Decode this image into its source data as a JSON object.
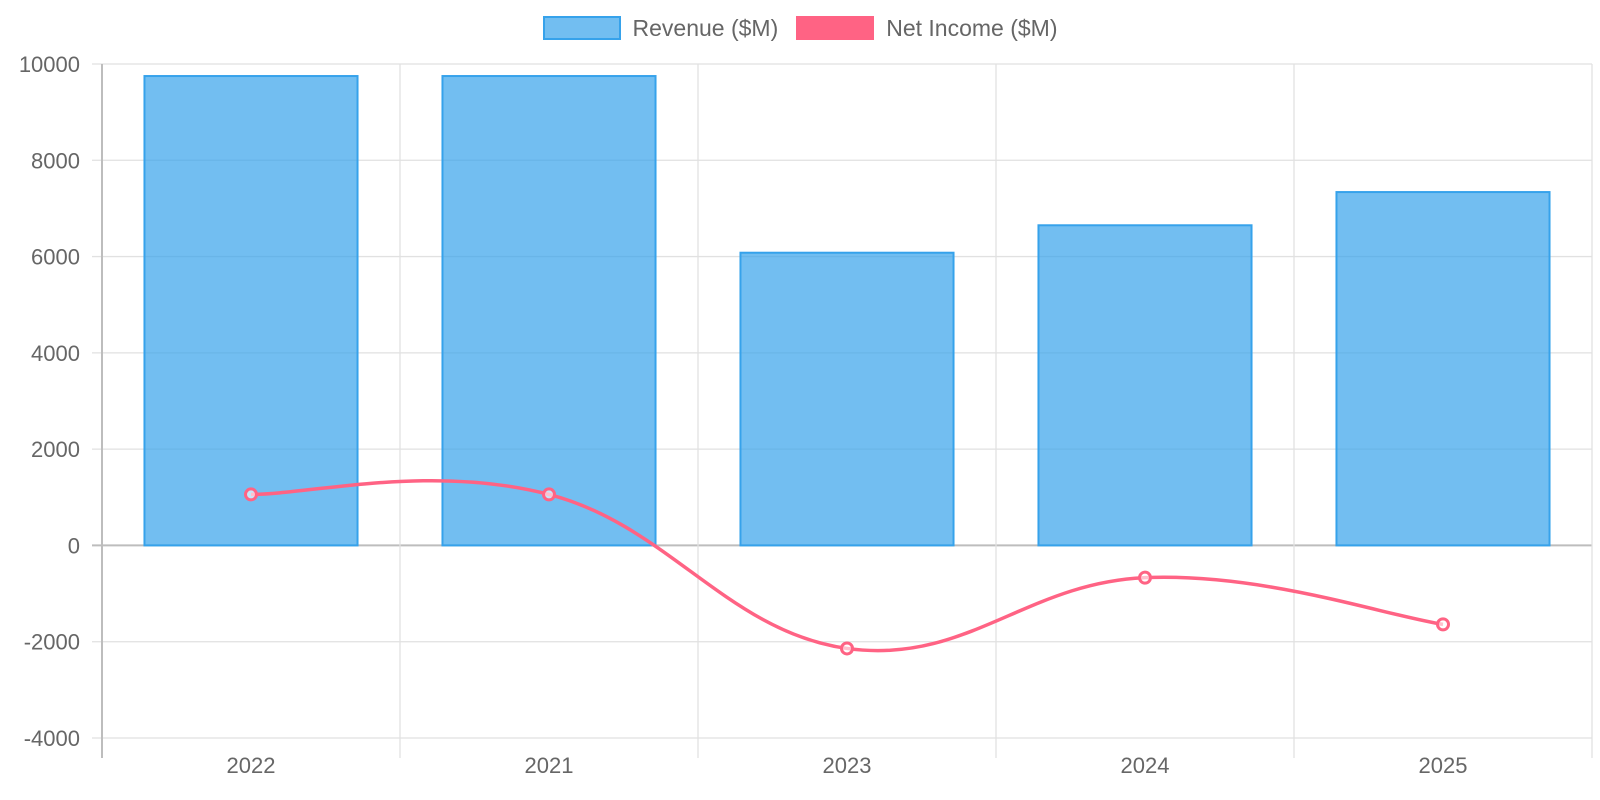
{
  "chart_data": {
    "type": "bar",
    "categories": [
      "2022",
      "2021",
      "2023",
      "2024",
      "2025"
    ],
    "series": [
      {
        "name": "Revenue ($M)",
        "type": "bar",
        "values": [
          9750,
          9750,
          6080,
          6650,
          7340
        ],
        "color": "#36A2EB",
        "fill": "rgba(54, 162, 235, 0.7)"
      },
      {
        "name": "Net Income ($M)",
        "type": "line",
        "values": [
          1060,
          1060,
          -2140,
          -670,
          -1640
        ],
        "color": "#FF6384"
      }
    ],
    "title": "",
    "xlabel": "",
    "ylabel": "",
    "ylim": [
      -4000,
      10000
    ],
    "yticks": [
      "10000",
      "8000",
      "6000",
      "4000",
      "2000",
      "0",
      "-2000",
      "-4000"
    ],
    "grid": true,
    "legend_position": "top"
  }
}
